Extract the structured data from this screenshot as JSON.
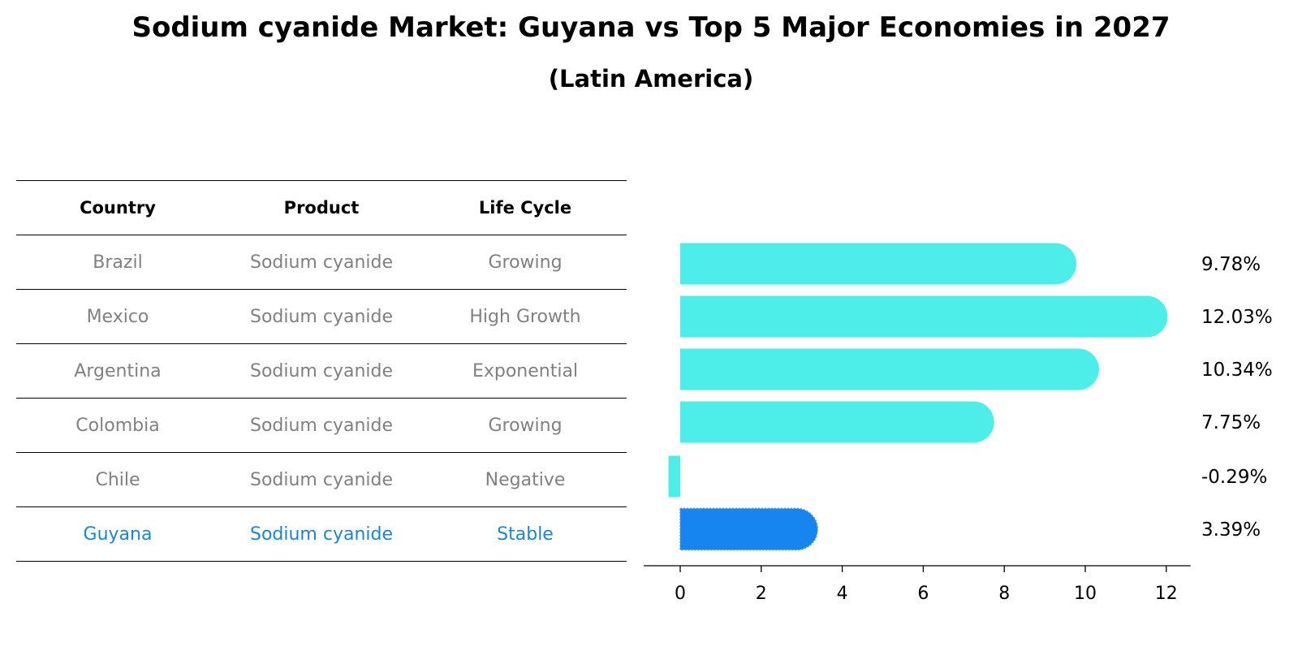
{
  "title": "Sodium cyanide Market: Guyana vs Top 5 Major Economies in 2027",
  "subtitle": "(Latin America)",
  "table": {
    "headers": [
      "Country",
      "Product",
      "Life Cycle"
    ],
    "rows": [
      [
        "Brazil",
        "Sodium cyanide",
        "Growing"
      ],
      [
        "Mexico",
        "Sodium cyanide",
        "High Growth"
      ],
      [
        "Argentina",
        "Sodium cyanide",
        "Exponential"
      ],
      [
        "Colombia",
        "Sodium cyanide",
        "Growing"
      ],
      [
        "Chile",
        "Sodium cyanide",
        "Negative"
      ],
      [
        "Guyana",
        "Sodium cyanide",
        "Stable"
      ]
    ],
    "highlight_row": 5
  },
  "colors": {
    "bar": "#4deeea",
    "highlight": "#1785f0",
    "highlight_text": "#1a85d6",
    "muted_text": "#808080"
  },
  "chart_data": {
    "type": "bar",
    "orientation": "horizontal",
    "categories": [
      "Brazil",
      "Mexico",
      "Argentina",
      "Colombia",
      "Chile",
      "Guyana"
    ],
    "values": [
      9.78,
      12.03,
      10.34,
      7.75,
      -0.29,
      3.39
    ],
    "value_labels": [
      "9.78%",
      "12.03%",
      "10.34%",
      "7.75%",
      "-0.29%",
      "3.39%"
    ],
    "xticks": [
      0,
      2,
      4,
      6,
      8,
      10,
      12
    ],
    "xlim": [
      -0.9,
      12.6
    ],
    "highlight_index": 5
  }
}
